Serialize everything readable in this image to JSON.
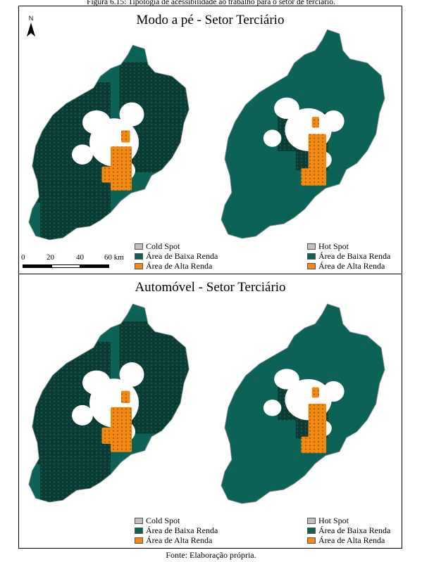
{
  "figure": {
    "caption": "Figura 6.15: Tipologia de acessibilidade ao trabalho para o setor de terciário.",
    "source": "Fonte: Elaboração própria."
  },
  "panels": {
    "top_title": "Modo a pé - Setor Terciário",
    "bottom_title": "Automóvel - Setor Terciário"
  },
  "legend": {
    "cold_spot": "Cold Spot",
    "hot_spot": "Hot Spot",
    "baixa_renda": "Área de Baixa Renda",
    "alta_renda": "Área de Alta Renda"
  },
  "scale_bar": {
    "labels": [
      "0",
      "20",
      "40",
      "60 km"
    ]
  },
  "north_arrow": {
    "label": "N",
    "icon": "north-arrow-icon"
  },
  "colors": {
    "teal": "#0d6258",
    "dark_hex": "#0a3a34",
    "orange": "#f28a12",
    "grey": "#c0c0c0",
    "outline": "#999999"
  }
}
